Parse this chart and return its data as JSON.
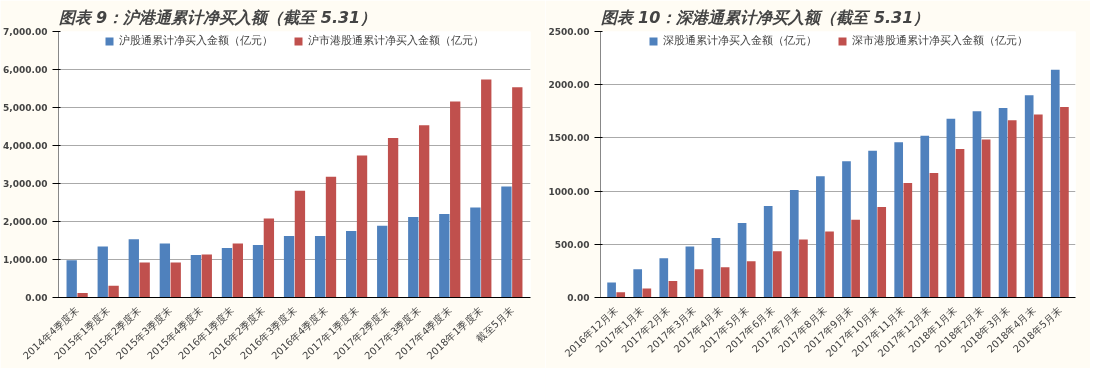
{
  "chart_data": [
    {
      "type": "bar",
      "title": "图表 9：沪港通累计净买入额（截至 5.31）",
      "categories": [
        "2014年4季度末",
        "2015年1季度末",
        "2015年2季度末",
        "2015年3季度末",
        "2015年4季度末",
        "2016年1季度末",
        "2016年2季度末",
        "2016年3季度末",
        "2016年4季度末",
        "2017年1季度末",
        "2017年2季度末",
        "2017年3季度末",
        "2017年4季度末",
        "2018年1季度末",
        "截至5月末"
      ],
      "series": [
        {
          "name": "沪股通累计净买入金额（亿元）",
          "color": "#4f81bd",
          "values": [
            980,
            1340,
            1530,
            1420,
            1120,
            1300,
            1380,
            1620,
            1620,
            1750,
            1890,
            2120,
            2200,
            2370,
            2920
          ]
        },
        {
          "name": "沪市港股通累计净买入金额（亿元）",
          "color": "#c0504d",
          "values": [
            120,
            310,
            920,
            920,
            1130,
            1420,
            2080,
            2810,
            3180,
            3740,
            4200,
            4530,
            5160,
            5740,
            5530
          ]
        }
      ],
      "ylim": [
        0,
        7000
      ],
      "yticks": [
        {
          "value": 0,
          "label": "0.00"
        },
        {
          "value": 1000,
          "label": "1,000.00"
        },
        {
          "value": 2000,
          "label": "2,000.00"
        },
        {
          "value": 3000,
          "label": "3,000.00"
        },
        {
          "value": 4000,
          "label": "4,000.00"
        },
        {
          "value": 5000,
          "label": "5,000.00"
        },
        {
          "value": 6000,
          "label": "6,000.00"
        },
        {
          "value": 7000,
          "label": "7,000.00"
        }
      ],
      "grid": "y",
      "legend": "top"
    },
    {
      "type": "bar",
      "title": "图表 10：深港通累计净买入额（截至 5.31）",
      "categories": [
        "2016年12月末",
        "2017年1月末",
        "2017年2月末",
        "2017年3月末",
        "2017年4月末",
        "2017年5月末",
        "2017年6月末",
        "2017年7月末",
        "2017年8月末",
        "2017年9月末",
        "2017年10月末",
        "2017年11月末",
        "2017年12月末",
        "2018年1月末",
        "2018年2月末",
        "2018年3月末",
        "2018年4月末",
        "2018年5月末"
      ],
      "series": [
        {
          "name": "深股通累计净买入金额（亿元）",
          "color": "#4f81bd",
          "values": [
            140,
            265,
            370,
            480,
            560,
            700,
            860,
            1010,
            1140,
            1280,
            1380,
            1460,
            1520,
            1680,
            1750,
            1780,
            1900,
            2140
          ]
        },
        {
          "name": "深市港股通累计净买入金额（亿元）",
          "color": "#c0504d",
          "values": [
            50,
            85,
            155,
            265,
            285,
            340,
            435,
            545,
            620,
            730,
            850,
            1075,
            1170,
            1395,
            1485,
            1665,
            1720,
            1790
          ]
        }
      ],
      "ylim": [
        0,
        2500
      ],
      "yticks": [
        {
          "value": 0,
          "label": "0.00"
        },
        {
          "value": 500,
          "label": "500.00"
        },
        {
          "value": 1000,
          "label": "1000.00"
        },
        {
          "value": 1500,
          "label": "1500.00"
        },
        {
          "value": 2000,
          "label": "2000.00"
        },
        {
          "value": 2500,
          "label": "2500.00"
        }
      ],
      "grid": "y",
      "legend": "top"
    }
  ]
}
